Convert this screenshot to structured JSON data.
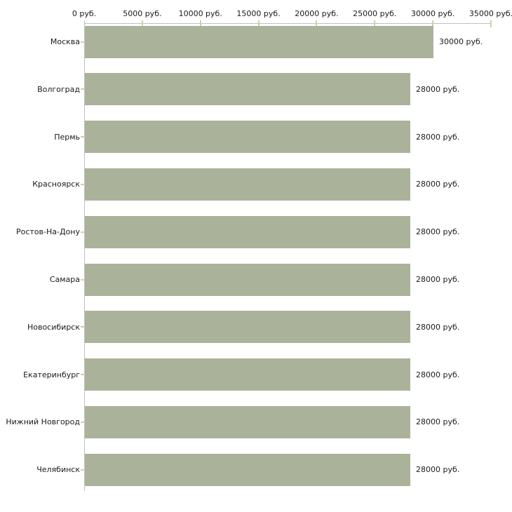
{
  "chart_data": {
    "type": "bar",
    "orientation": "horizontal",
    "title": "",
    "categories": [
      "Москва",
      "Волгоград",
      "Пермь",
      "Красноярск",
      "Ростов-На-Дону",
      "Самара",
      "Новосибирск",
      "Екатеринбург",
      "Нижний Новгород",
      "Челябинск"
    ],
    "values": [
      30000,
      28000,
      28000,
      28000,
      28000,
      28000,
      28000,
      28000,
      28000,
      28000
    ],
    "value_labels": [
      "30000 руб.",
      "28000 руб.",
      "28000 руб.",
      "28000 руб.",
      "28000 руб.",
      "28000 руб.",
      "28000 руб.",
      "28000 руб.",
      "28000 руб.",
      "28000 руб."
    ],
    "x_axis": {
      "min": 0,
      "max": 35000,
      "tick_interval": 5000,
      "tick_labels": [
        "0 руб.",
        "5000 руб.",
        "10000 руб.",
        "15000 руб.",
        "20000 руб.",
        "25000 руб.",
        "30000 руб.",
        "35000 руб."
      ]
    },
    "legend": "none",
    "grid": "off",
    "colors": {
      "bar": "#abb29a",
      "axis": "#c0c0c0",
      "tick": "#cfcfa5",
      "text": "#1a1a1a",
      "background": "#ffffff"
    }
  }
}
